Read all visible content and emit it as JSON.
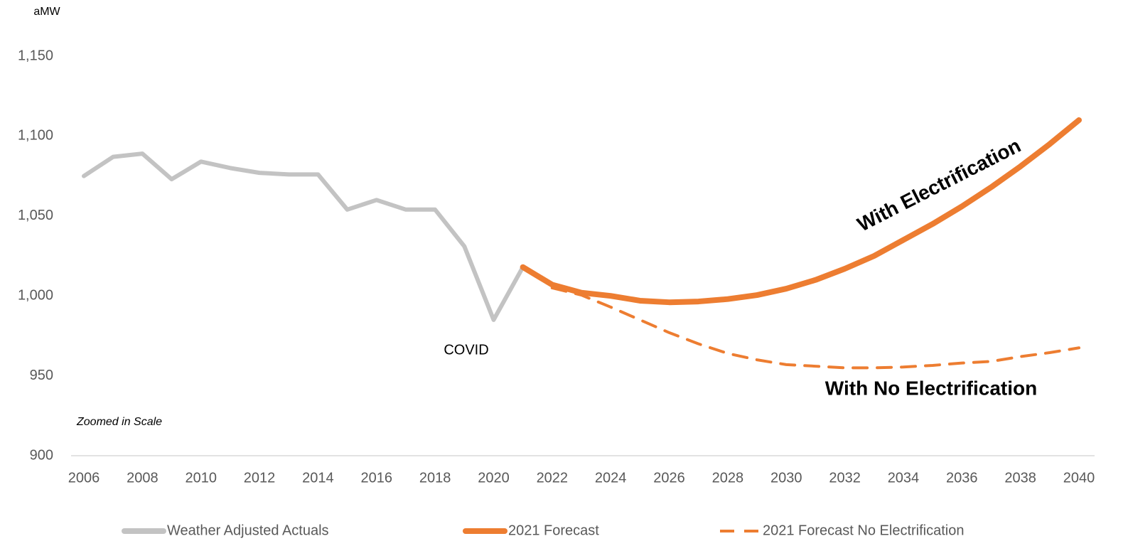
{
  "chart_data": {
    "type": "line",
    "y_label": "aMW",
    "x": [
      2006,
      2007,
      2008,
      2009,
      2010,
      2011,
      2012,
      2013,
      2014,
      2015,
      2016,
      2017,
      2018,
      2019,
      2020,
      2021,
      2022,
      2023,
      2024,
      2025,
      2026,
      2027,
      2028,
      2029,
      2030,
      2031,
      2032,
      2033,
      2034,
      2035,
      2036,
      2037,
      2038,
      2039,
      2040
    ],
    "series": [
      {
        "name": "Weather Adjusted Actuals",
        "color": "#c3c3c3",
        "dash": false,
        "values": [
          1075,
          1087,
          1089,
          1073,
          1084,
          1080,
          1077,
          1076,
          1076,
          1054,
          1060,
          1054,
          1054,
          1031,
          985,
          1018,
          null,
          null,
          null,
          null,
          null,
          null,
          null,
          null,
          null,
          null,
          null,
          null,
          null,
          null,
          null,
          null,
          null,
          null,
          null
        ]
      },
      {
        "name": "2021 Forecast",
        "color": "#ed7d31",
        "dash": false,
        "values": [
          null,
          null,
          null,
          null,
          null,
          null,
          null,
          null,
          null,
          null,
          null,
          null,
          null,
          null,
          null,
          1018,
          1007,
          1002,
          1000,
          997,
          996,
          996.5,
          998,
          1000.5,
          1004.5,
          1010,
          1017,
          1025,
          1035,
          1045,
          1056,
          1068,
          1081,
          1095,
          1110
        ]
      },
      {
        "name": "2021 Forecast No Electrification",
        "color": "#ed7d31",
        "dash": true,
        "values": [
          null,
          null,
          null,
          null,
          null,
          null,
          null,
          null,
          null,
          null,
          null,
          null,
          null,
          null,
          null,
          null,
          1005,
          1000.5,
          993,
          985,
          977,
          970,
          964,
          960,
          957,
          956,
          955,
          955,
          955.5,
          956.5,
          958,
          959,
          962,
          964.5,
          967.5
        ]
      }
    ],
    "xlim": [
      2006,
      2040
    ],
    "xticks": [
      2006,
      2008,
      2010,
      2012,
      2014,
      2016,
      2018,
      2020,
      2022,
      2024,
      2026,
      2028,
      2030,
      2032,
      2034,
      2036,
      2038,
      2040
    ],
    "ylim": [
      900,
      1150
    ],
    "yticks": [
      900,
      950,
      {
        "value": 1000,
        "label": "1,000"
      },
      {
        "value": 1050,
        "label": "1,050"
      },
      {
        "value": 1100,
        "label": "1,100"
      },
      {
        "value": 1150,
        "label": "1,150"
      }
    ],
    "grid": false,
    "legend": "bottom",
    "annotations": [
      "COVID",
      "Zoomed in Scale",
      "With Electrification",
      "With No Electrification"
    ]
  }
}
